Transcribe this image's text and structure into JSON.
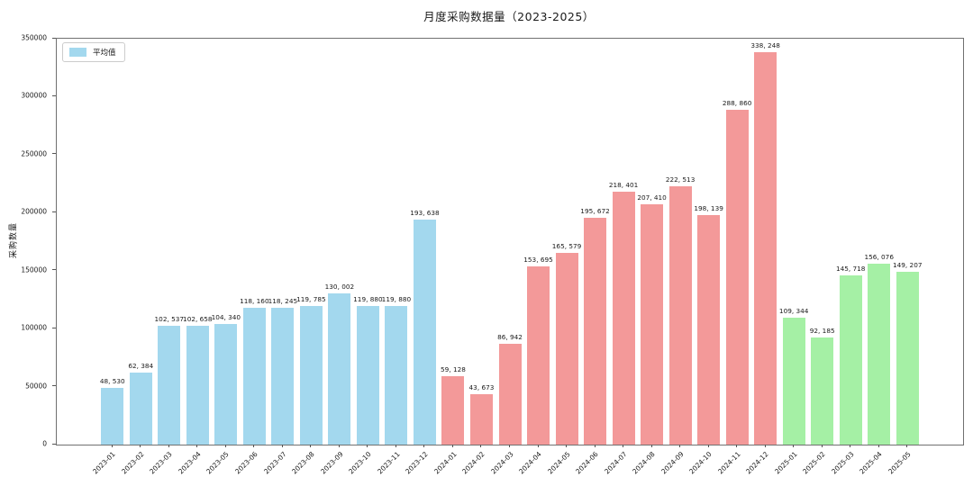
{
  "chart_data": {
    "type": "bar",
    "title": "月度采购数据量（2023-2025）",
    "xlabel": "",
    "ylabel": "采购数量",
    "ylim": [
      0,
      350000
    ],
    "yticks": [
      0,
      50000,
      100000,
      150000,
      200000,
      250000,
      300000,
      350000
    ],
    "grid": false,
    "legend": [
      {
        "label": "平均值",
        "color": "#a3d8ee"
      }
    ],
    "legend_position": "upper-left",
    "categories": [
      "2023-01",
      "2023-02",
      "2023-03",
      "2023-04",
      "2023-05",
      "2023-06",
      "2023-07",
      "2023-08",
      "2023-09",
      "2023-10",
      "2023-11",
      "2023-12",
      "2024-01",
      "2024-02",
      "2024-03",
      "2024-04",
      "2024-05",
      "2024-06",
      "2024-07",
      "2024-08",
      "2024-09",
      "2024-10",
      "2024-11",
      "2024-12",
      "2025-01",
      "2025-02",
      "2025-03",
      "2025-04",
      "2025-05"
    ],
    "values": [
      48530,
      62384,
      102537,
      102658,
      104340,
      118160,
      118245,
      119785,
      130002,
      119880,
      119880,
      193638,
      59128,
      43673,
      86942,
      153695,
      165579,
      195672,
      218401,
      207410,
      222513,
      198139,
      288860,
      338248,
      109344,
      92185,
      145718,
      156076,
      149207
    ],
    "bar_labels": [
      "48, 530",
      "62, 384",
      "102, 537",
      "102, 658",
      "104, 340",
      "118, 160",
      "118, 245",
      "119, 785",
      "130, 002",
      "119, 880",
      "119, 880",
      "193, 638",
      "59, 128",
      "43, 673",
      "86, 942",
      "153, 695",
      "165, 579",
      "195, 672",
      "218, 401",
      "207, 410",
      "222, 513",
      "198, 139",
      "288, 860",
      "338, 248",
      "109, 344",
      "92, 185",
      "145, 718",
      "156, 076",
      "149, 207"
    ],
    "bar_colors": [
      "#a3d8ee",
      "#a3d8ee",
      "#a3d8ee",
      "#a3d8ee",
      "#a3d8ee",
      "#a3d8ee",
      "#a3d8ee",
      "#a3d8ee",
      "#a3d8ee",
      "#a3d8ee",
      "#a3d8ee",
      "#a3d8ee",
      "#f39999",
      "#f39999",
      "#f39999",
      "#f39999",
      "#f39999",
      "#f39999",
      "#f39999",
      "#f39999",
      "#f39999",
      "#f39999",
      "#f39999",
      "#f39999",
      "#a5f0a5",
      "#a5f0a5",
      "#a5f0a5",
      "#a5f0a5",
      "#a5f0a5"
    ]
  }
}
